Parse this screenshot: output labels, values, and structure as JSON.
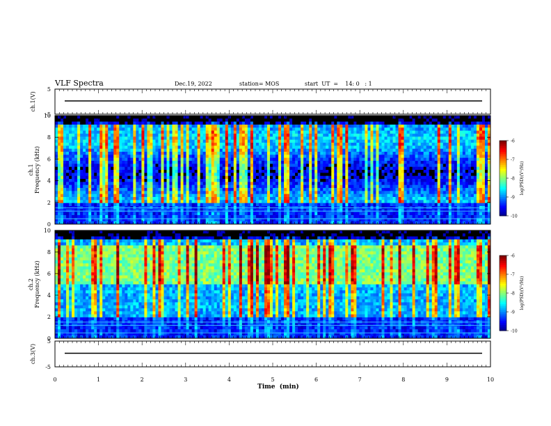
{
  "header": {
    "title": "VLF Spectra",
    "date": "Dec.19, 2022",
    "station": "station= MOS",
    "start": "start  UT  =    14: 0   : 1"
  },
  "chart_data": [
    {
      "type": "line",
      "panel": "ch1-voltage",
      "ylabel": "ch.1(V)",
      "ylim": [
        -5,
        5
      ],
      "yticks": [
        "5",
        "-5"
      ],
      "series": [
        {
          "values": [
            0,
            0
          ]
        }
      ]
    },
    {
      "type": "heatmap",
      "panel": "ch1-spectrogram",
      "ylabel": "ch.1\nFrequency (kHz)",
      "ylim": [
        0,
        10
      ],
      "yticks": [
        "0",
        "2",
        "4",
        "6",
        "8",
        "10"
      ],
      "colorbar": {
        "label": "log(PSD)(V²/Hz)",
        "ticks": [
          "-6",
          "-7",
          "-8",
          "-9",
          "-10"
        ],
        "range": [
          -10,
          -6
        ]
      }
    },
    {
      "type": "heatmap",
      "panel": "ch2-spectrogram",
      "ylabel": "ch.2\nFrequency (kHz)",
      "ylim": [
        0,
        10
      ],
      "yticks": [
        "0",
        "2",
        "4",
        "6",
        "8",
        "10"
      ],
      "colorbar": {
        "label": "log(PSD)(V²/Hz)",
        "ticks": [
          "-6",
          "-7",
          "-8",
          "-9",
          "-10"
        ],
        "range": [
          -10,
          -6
        ]
      }
    },
    {
      "type": "line",
      "panel": "ch3-voltage",
      "ylabel": "ch.3(V)",
      "ylim": [
        -5,
        5
      ],
      "yticks": [
        "5",
        "-5"
      ],
      "series": [
        {
          "values": [
            0,
            0
          ]
        }
      ]
    }
  ],
  "xaxis": {
    "label": "Time  (min)",
    "range": [
      0,
      10
    ],
    "ticks": [
      "0",
      "1",
      "2",
      "3",
      "4",
      "5",
      "6",
      "7",
      "8",
      "9",
      "10"
    ]
  }
}
